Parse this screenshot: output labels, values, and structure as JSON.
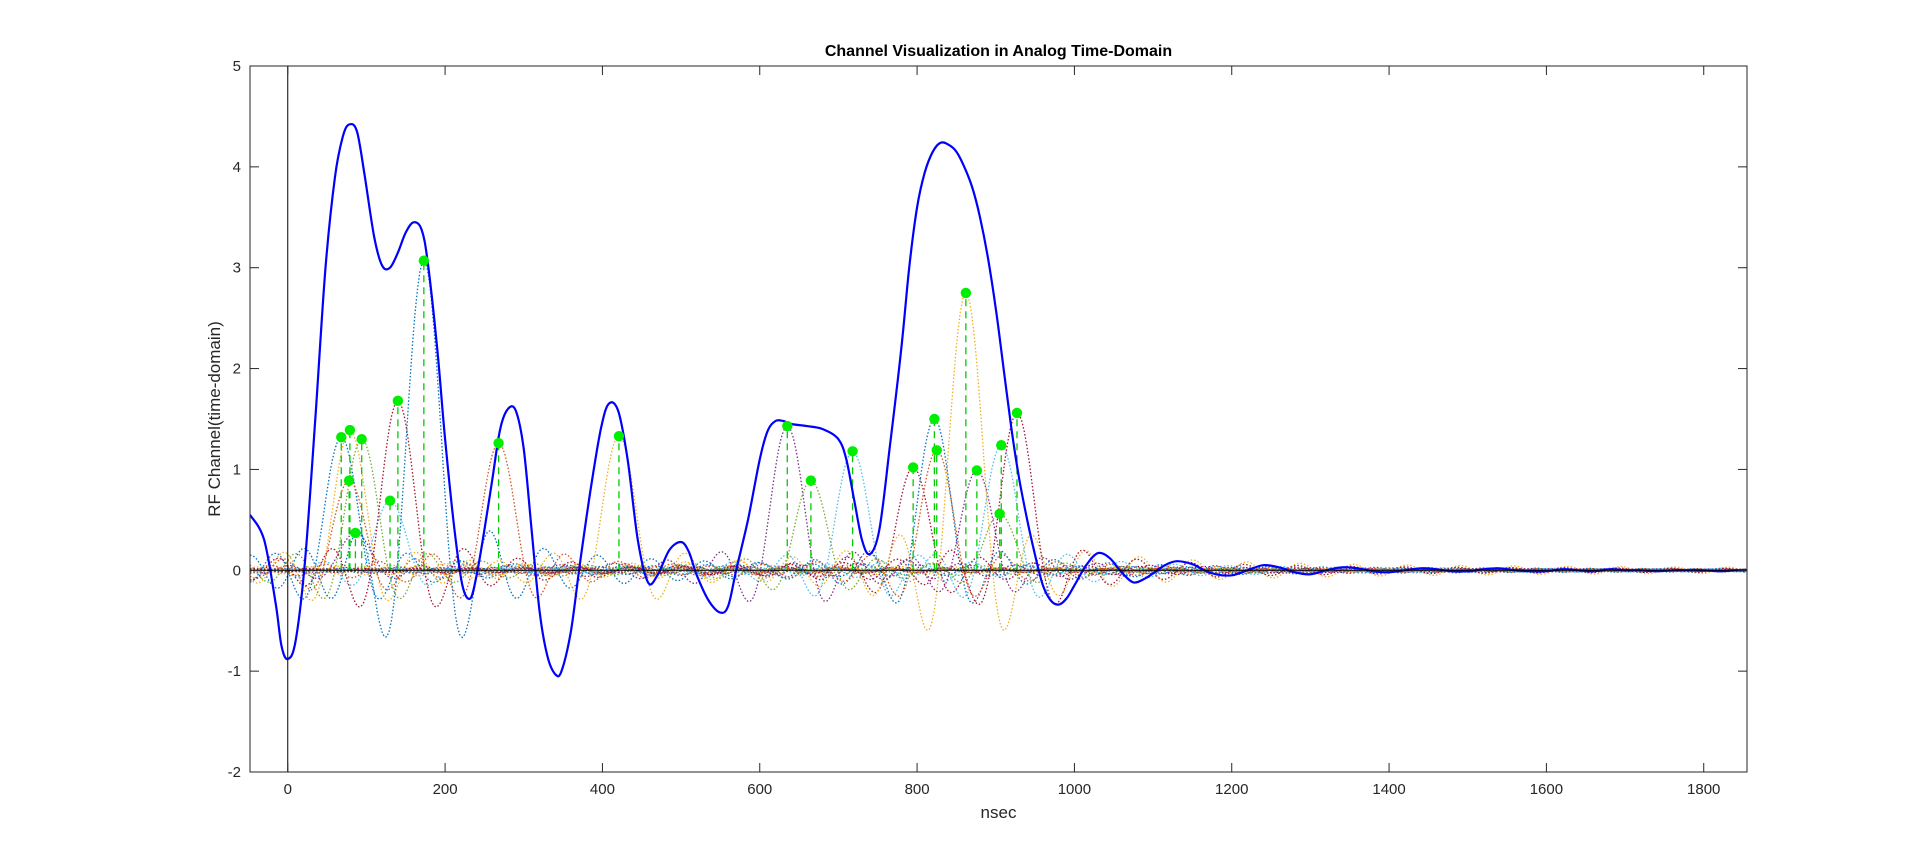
{
  "chart_data": {
    "type": "line",
    "title": "Channel Visualization in Analog Time-Domain",
    "xlabel": "nsec",
    "ylabel": "RF Channel(time-domain)",
    "xlim": [
      -48,
      1855
    ],
    "ylim": [
      -2,
      5
    ],
    "x_ticks": [
      0,
      200,
      400,
      600,
      800,
      1000,
      1200,
      1400,
      1600,
      1800
    ],
    "y_ticks": [
      -2,
      -1,
      0,
      1,
      2,
      3,
      4,
      5
    ],
    "grid": false,
    "legend": "none",
    "zero_line_x": 0,
    "colors": {
      "total": "#0000ff",
      "taps": "#00ee00",
      "tap_stems": "#00cc00",
      "components": [
        "#0072bd",
        "#d95319",
        "#edb120",
        "#7e2f8e",
        "#77ac30",
        "#4dbeee",
        "#a2142f"
      ]
    },
    "taps": [
      {
        "t": 68,
        "a": 1.32
      },
      {
        "t": 78,
        "a": 0.89
      },
      {
        "t": 79,
        "a": 1.39
      },
      {
        "t": 86,
        "a": 0.37
      },
      {
        "t": 94,
        "a": 1.3
      },
      {
        "t": 130,
        "a": 0.69
      },
      {
        "t": 140,
        "a": 1.68
      },
      {
        "t": 173,
        "a": 3.07
      },
      {
        "t": 268,
        "a": 1.26
      },
      {
        "t": 421,
        "a": 1.33
      },
      {
        "t": 635,
        "a": 1.43
      },
      {
        "t": 665,
        "a": 0.89
      },
      {
        "t": 718,
        "a": 1.18
      },
      {
        "t": 795,
        "a": 1.02
      },
      {
        "t": 822,
        "a": 1.5
      },
      {
        "t": 825,
        "a": 1.19
      },
      {
        "t": 862,
        "a": 2.75
      },
      {
        "t": 876,
        "a": 0.99
      },
      {
        "t": 905,
        "a": 0.56
      },
      {
        "t": 907,
        "a": 1.24
      },
      {
        "t": 927,
        "a": 1.56
      }
    ],
    "series": [
      {
        "name": "",
        "role": "total",
        "x": [
          -48,
          -30,
          -15,
          -8,
          0,
          10,
          22,
          35,
          48,
          60,
          70,
          78,
          88,
          98,
          110,
          120,
          130,
          140,
          150,
          160,
          170,
          178,
          190,
          200,
          212,
          222,
          232,
          240,
          250,
          260,
          270,
          280,
          290,
          300,
          310,
          320,
          330,
          340,
          348,
          360,
          372,
          385,
          398,
          408,
          420,
          432,
          445,
          458,
          470,
          485,
          500,
          510,
          520,
          535,
          550,
          560,
          570,
          585,
          600,
          610,
          620,
          630,
          640,
          660,
          680,
          700,
          710,
          720,
          730,
          740,
          752,
          765,
          780,
          790,
          800,
          810,
          820,
          830,
          840,
          850,
          860,
          870,
          880,
          890,
          900,
          910,
          920,
          930,
          940,
          950,
          960,
          970,
          980,
          990,
          1000,
          1015,
          1030,
          1045,
          1060,
          1075,
          1090,
          1100,
          1115,
          1130,
          1150,
          1165,
          1180,
          1200,
          1220,
          1240,
          1260,
          1280,
          1300,
          1320,
          1340,
          1360,
          1380,
          1400,
          1420,
          1440,
          1460,
          1480,
          1500,
          1520,
          1540,
          1560,
          1580,
          1600,
          1620,
          1640,
          1660,
          1680,
          1700,
          1720,
          1740,
          1760,
          1780,
          1800,
          1820,
          1840,
          1855
        ],
        "y": [
          0.55,
          0.3,
          -0.35,
          -0.75,
          -0.88,
          -0.7,
          0.1,
          1.5,
          3.0,
          3.9,
          4.3,
          4.42,
          4.35,
          3.9,
          3.3,
          3.02,
          3.0,
          3.15,
          3.35,
          3.45,
          3.38,
          3.05,
          2.2,
          1.3,
          0.4,
          -0.15,
          -0.28,
          -0.05,
          0.4,
          0.9,
          1.4,
          1.6,
          1.58,
          1.2,
          0.4,
          -0.4,
          -0.85,
          -1.03,
          -1.0,
          -0.6,
          0.1,
          0.8,
          1.4,
          1.65,
          1.58,
          1.1,
          0.3,
          -0.12,
          -0.05,
          0.2,
          0.28,
          0.18,
          -0.05,
          -0.3,
          -0.42,
          -0.35,
          0.0,
          0.5,
          1.1,
          1.38,
          1.48,
          1.48,
          1.45,
          1.43,
          1.4,
          1.3,
          1.1,
          0.7,
          0.3,
          0.16,
          0.4,
          1.2,
          2.2,
          3.0,
          3.6,
          3.95,
          4.15,
          4.24,
          4.22,
          4.15,
          4.0,
          3.8,
          3.5,
          3.1,
          2.6,
          2.0,
          1.4,
          0.9,
          0.5,
          0.15,
          -0.15,
          -0.3,
          -0.34,
          -0.28,
          -0.15,
          0.05,
          0.17,
          0.12,
          -0.02,
          -0.12,
          -0.08,
          -0.03,
          0.05,
          0.09,
          0.06,
          0.0,
          -0.04,
          -0.05,
          0.0,
          0.05,
          0.03,
          -0.02,
          -0.04,
          0.0,
          0.03,
          0.02,
          -0.01,
          -0.02,
          0.0,
          0.02,
          0.01,
          -0.01,
          -0.01,
          0.01,
          0.02,
          0.0,
          -0.01,
          -0.01,
          0.01,
          0.0,
          -0.01,
          0.01,
          0.0,
          0.0,
          -0.01,
          0.0,
          0.0,
          0.0,
          -0.01,
          0.0,
          0.0
        ]
      }
    ]
  }
}
